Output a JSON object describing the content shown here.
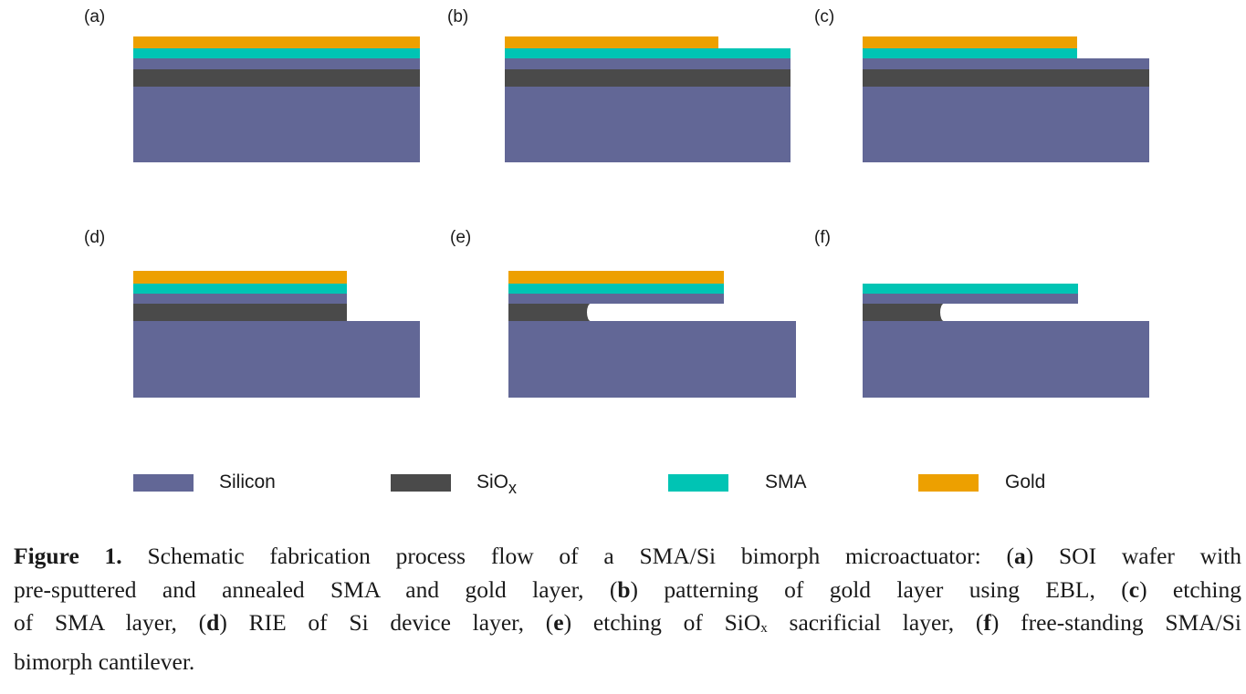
{
  "figure": {
    "materials": {
      "silicon": {
        "label": "Silicon",
        "color": "#626796"
      },
      "siox": {
        "label": "SiO",
        "label_sub": "x",
        "color": "#4a4a4a"
      },
      "sma": {
        "label": "SMA",
        "color": "#00c4b4"
      },
      "gold": {
        "label": "Gold",
        "color": "#eda000"
      }
    },
    "panels": [
      {
        "id": "a",
        "label": "(a)",
        "step": "SOI wafer with pre-sputtered and annealed SMA and gold layer"
      },
      {
        "id": "b",
        "label": "(b)",
        "step": "patterning of gold layer using EBL"
      },
      {
        "id": "c",
        "label": "(c)",
        "step": "etching of SMA layer"
      },
      {
        "id": "d",
        "label": "(d)",
        "step": "RIE of Si device layer"
      },
      {
        "id": "e",
        "label": "(e)",
        "step": "etching of SiOx sacrificial layer"
      },
      {
        "id": "f",
        "label": "(f)",
        "step": "free-standing SMA/Si bimorph cantilever"
      }
    ],
    "legend": [
      {
        "key": "silicon",
        "label": "Silicon"
      },
      {
        "key": "siox",
        "label": "SiO",
        "sub": "x"
      },
      {
        "key": "sma",
        "label": "SMA"
      },
      {
        "key": "gold",
        "label": "Gold"
      }
    ]
  },
  "caption": {
    "figure_label": "Figure 1.",
    "lines": [
      [
        {
          "t": " Schematic fabrication process flow of a SMA/Si bimorph microactuator: ("
        },
        {
          "b": "a"
        },
        {
          "t": ") SOI wafer with"
        }
      ],
      [
        {
          "t": "pre-sputtered and annealed SMA and gold layer, ("
        },
        {
          "b": "b"
        },
        {
          "t": ") patterning of gold layer using EBL, ("
        },
        {
          "b": "c"
        },
        {
          "t": ") etching"
        }
      ],
      [
        {
          "t": "of SMA layer, ("
        },
        {
          "b": "d"
        },
        {
          "t": ") RIE of Si device layer, ("
        },
        {
          "b": "e"
        },
        {
          "t": ") etching of SiO"
        },
        {
          "s": "x"
        },
        {
          "t": " sacrificial layer, ("
        },
        {
          "b": "f"
        },
        {
          "t": ") free-standing SMA/Si"
        }
      ],
      [
        {
          "t": "bimorph cantilever."
        }
      ]
    ]
  }
}
